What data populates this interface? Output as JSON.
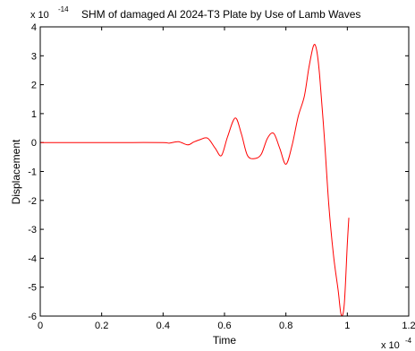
{
  "chart_data": {
    "type": "line",
    "title": "SHM of damaged Al 2024-T3 Plate by Use of Lamb Waves",
    "xlabel": "Time",
    "ylabel": "Displacement",
    "x_exponent_label": "x 10",
    "x_exponent": "-4",
    "y_exponent_label": "x 10",
    "y_exponent": "-14",
    "xlim": [
      0,
      1.2
    ],
    "ylim": [
      -6,
      4
    ],
    "x_ticks": [
      0,
      0.2,
      0.4,
      0.6,
      0.8,
      1,
      1.2
    ],
    "y_ticks": [
      -6,
      -5,
      -4,
      -3,
      -2,
      -1,
      0,
      1,
      2,
      3,
      4
    ],
    "x_tick_labels": [
      "0",
      "0.2",
      "0.4",
      "0.6",
      "0.8",
      "1",
      "1.2"
    ],
    "y_tick_labels": [
      "-6",
      "-5",
      "-4",
      "-3",
      "-2",
      "-1",
      "0",
      "1",
      "2",
      "3",
      "4"
    ],
    "grid": false,
    "series": [
      {
        "color": "#ff0000",
        "x": [
          0,
          0.1,
          0.2,
          0.3,
          0.4,
          0.42,
          0.45,
          0.48,
          0.5,
          0.52,
          0.545,
          0.57,
          0.59,
          0.61,
          0.635,
          0.655,
          0.675,
          0.7,
          0.72,
          0.74,
          0.76,
          0.78,
          0.8,
          0.82,
          0.84,
          0.86,
          0.875,
          0.89,
          0.9,
          0.91,
          0.925,
          0.94,
          0.955,
          0.97,
          0.98,
          0.99,
          1.0,
          1.005
        ],
        "y": [
          0,
          0,
          0,
          0,
          0,
          -0.02,
          0.03,
          -0.08,
          0.02,
          0.1,
          0.15,
          -0.2,
          -0.45,
          0.2,
          0.85,
          0.3,
          -0.45,
          -0.55,
          -0.4,
          0.15,
          0.32,
          -0.2,
          -0.75,
          -0.1,
          0.9,
          1.6,
          2.6,
          3.35,
          3.2,
          2.3,
          0.2,
          -2.2,
          -3.9,
          -5.1,
          -5.95,
          -5.6,
          -3.5,
          -2.6
        ]
      }
    ]
  }
}
